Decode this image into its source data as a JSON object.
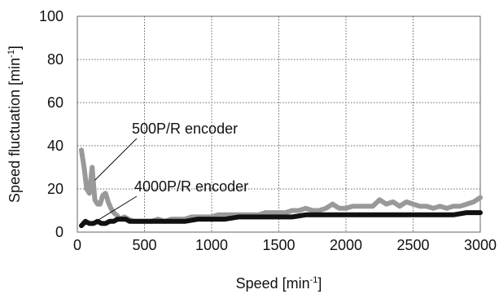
{
  "chart_data": {
    "type": "line",
    "xlabel": "Speed [min",
    "xlabel_sup": "-1",
    "xlabel_end": "]",
    "ylabel": "Speed fluctuation [min",
    "ylabel_sup": "-1",
    "ylabel_end": "]",
    "xlim": [
      0,
      3000
    ],
    "ylim": [
      0,
      100
    ],
    "xticks": [
      0,
      500,
      1000,
      1500,
      2000,
      2500,
      3000
    ],
    "yticks": [
      0,
      20,
      40,
      60,
      80,
      100
    ],
    "grid": true,
    "legend": "none",
    "series": [
      {
        "name": "500P/R encoder",
        "color": "#999999",
        "x": [
          30,
          50,
          70,
          90,
          110,
          130,
          150,
          170,
          190,
          210,
          230,
          250,
          270,
          290,
          320,
          350,
          380,
          420,
          460,
          500,
          550,
          600,
          650,
          700,
          750,
          800,
          850,
          900,
          950,
          1000,
          1050,
          1100,
          1150,
          1200,
          1250,
          1300,
          1350,
          1400,
          1450,
          1500,
          1550,
          1600,
          1650,
          1700,
          1750,
          1800,
          1850,
          1900,
          1950,
          2000,
          2050,
          2100,
          2150,
          2200,
          2250,
          2300,
          2350,
          2400,
          2450,
          2500,
          2550,
          2600,
          2650,
          2700,
          2750,
          2800,
          2850,
          2900,
          2950,
          3000
        ],
        "values": [
          38,
          30,
          20,
          18,
          30,
          15,
          13,
          13,
          17,
          18,
          14,
          11,
          9,
          8,
          6,
          7,
          6,
          5,
          5,
          5,
          5,
          6,
          5,
          6,
          6,
          6,
          7,
          7,
          7,
          7,
          8,
          8,
          8,
          8,
          8,
          8,
          8,
          9,
          9,
          9,
          9,
          10,
          10,
          11,
          10,
          10,
          11,
          13,
          11,
          11,
          12,
          12,
          12,
          12,
          15,
          13,
          14,
          12,
          14,
          13,
          12,
          12,
          11,
          12,
          11,
          12,
          12,
          13,
          14,
          16
        ]
      },
      {
        "name": "4000P/R encoder",
        "color": "#111111",
        "x": [
          30,
          60,
          90,
          120,
          150,
          180,
          210,
          240,
          270,
          300,
          330,
          360,
          390,
          420,
          450,
          500,
          600,
          700,
          800,
          900,
          1000,
          1100,
          1200,
          1300,
          1400,
          1500,
          1600,
          1700,
          1800,
          1900,
          2000,
          2100,
          2200,
          2300,
          2400,
          2500,
          2600,
          2700,
          2800,
          2900,
          3000
        ],
        "values": [
          3,
          5,
          4,
          4,
          5,
          4,
          4,
          5,
          5,
          6,
          6,
          6,
          5,
          5,
          5,
          5,
          5,
          5,
          5,
          6,
          6,
          6,
          7,
          7,
          7,
          7,
          7,
          8,
          8,
          8,
          8,
          8,
          8,
          8,
          8,
          8,
          8,
          8,
          8,
          9,
          9
        ]
      }
    ],
    "annotations": [
      {
        "text": "500P/R encoder",
        "series": 0
      },
      {
        "text": "4000P/R encoder",
        "series": 1
      }
    ]
  }
}
